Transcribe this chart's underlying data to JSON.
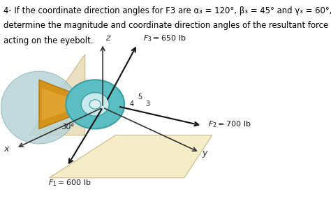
{
  "title_line1": "4- If the coordinate direction angles for F3 are α₃ = 120°, β₃ = 45° and γ₃ = 60°,",
  "title_line2": "determine the magnitude and coordinate direction angles of the resultant force",
  "title_line3": "acting on the eyebolt.",
  "bg_color": "#ffffff",
  "text_color": "#000000",
  "fig_width": 4.74,
  "fig_height": 3.08,
  "dpi": 100,
  "floor_color": "#F5ECC8",
  "floor_edge": "#CCBB88",
  "wall_color": "#EADFC0",
  "blob_color": "#B8D4D8",
  "blob_edge": "#90B8BC",
  "mount_color": "#D4941A",
  "mount_edge": "#B07810",
  "mount_inner_color": "#E8B040",
  "ring_color": "#5BBEC2",
  "ring_edge": "#3A9EA4",
  "ring_inner_color": "#C8EAEC",
  "axis_color": "#333333",
  "arrow_color": "#111111",
  "angle_label": "30°"
}
